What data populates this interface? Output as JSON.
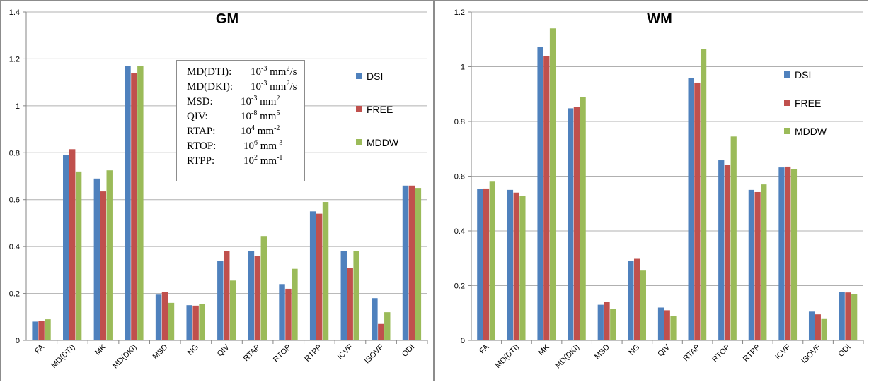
{
  "colors": {
    "DSI": "#4f81bd",
    "FREE": "#c0504d",
    "MDDW": "#9bbb59",
    "grid": "#b0b0b0",
    "axis": "#868686"
  },
  "units_note": [
    {
      "label": "MD(DTI):",
      "base": "10",
      "exp": "-3",
      "unit": "mm",
      "unit_exp": "2",
      "suffix": "/s"
    },
    {
      "label": "MD(DKI):",
      "base": "10",
      "exp": "-3",
      "unit": "mm",
      "unit_exp": "2",
      "suffix": "/s"
    },
    {
      "label": "MSD:",
      "base": "10",
      "exp": "-3",
      "unit": "mm",
      "unit_exp": "2",
      "suffix": ""
    },
    {
      "label": "QIV:",
      "base": "10",
      "exp": "-8",
      "unit": "mm",
      "unit_exp": "5",
      "suffix": ""
    },
    {
      "label": "RTAP:",
      "base": "10",
      "exp": "4",
      "unit": "mm",
      "unit_exp": "-2",
      "suffix": ""
    },
    {
      "label": "RTOP:",
      "base": "10",
      "exp": "6",
      "unit": "mm",
      "unit_exp": "-3",
      "suffix": ""
    },
    {
      "label": "RTPP:",
      "base": "10",
      "exp": "2",
      "unit": "mm",
      "unit_exp": "-1",
      "suffix": ""
    }
  ],
  "chart_data": [
    {
      "type": "bar",
      "title": "GM",
      "categories": [
        "FA",
        "MD(DTI)",
        "MK",
        "MD(DKI)",
        "MSD",
        "NG",
        "QIV",
        "RTAP",
        "RTOP",
        "RTPP",
        "ICVF",
        "ISOVF",
        "ODI"
      ],
      "ylim": [
        0,
        1.4
      ],
      "yticks": [
        "0",
        "0.2",
        "0.4",
        "0.6",
        "0.8",
        "1",
        "1.2",
        "1.4"
      ],
      "grid": true,
      "legend": "right",
      "series": [
        {
          "name": "DSI",
          "values": [
            0.08,
            0.79,
            0.69,
            1.17,
            0.195,
            0.15,
            0.34,
            0.38,
            0.24,
            0.55,
            0.38,
            0.18,
            0.66
          ]
        },
        {
          "name": "FREE",
          "values": [
            0.082,
            0.815,
            0.635,
            1.14,
            0.205,
            0.148,
            0.38,
            0.36,
            0.22,
            0.54,
            0.31,
            0.07,
            0.66
          ]
        },
        {
          "name": "MDDW",
          "values": [
            0.09,
            0.72,
            0.725,
            1.17,
            0.16,
            0.155,
            0.255,
            0.445,
            0.305,
            0.59,
            0.38,
            0.12,
            0.65
          ]
        }
      ]
    },
    {
      "type": "bar",
      "title": "WM",
      "categories": [
        "FA",
        "MD(DTI)",
        "MK",
        "MD(DKI)",
        "MSD",
        "NG",
        "QIV",
        "RTAP",
        "RTOP",
        "RTPP",
        "ICVF",
        "ISOVF",
        "ODI"
      ],
      "ylim": [
        0,
        1.2
      ],
      "yticks": [
        "0",
        "0.2",
        "0.4",
        "0.6",
        "0.8",
        "1",
        "1.2"
      ],
      "grid": true,
      "legend": "right",
      "series": [
        {
          "name": "DSI",
          "values": [
            0.553,
            0.55,
            1.072,
            0.848,
            0.13,
            0.29,
            0.12,
            0.958,
            0.658,
            0.55,
            0.632,
            0.105,
            0.178
          ]
        },
        {
          "name": "FREE",
          "values": [
            0.555,
            0.54,
            1.038,
            0.852,
            0.14,
            0.298,
            0.11,
            0.942,
            0.642,
            0.542,
            0.635,
            0.095,
            0.175
          ]
        },
        {
          "name": "MDDW",
          "values": [
            0.58,
            0.528,
            1.14,
            0.888,
            0.115,
            0.255,
            0.09,
            1.065,
            0.745,
            0.57,
            0.625,
            0.078,
            0.168
          ]
        }
      ]
    }
  ]
}
